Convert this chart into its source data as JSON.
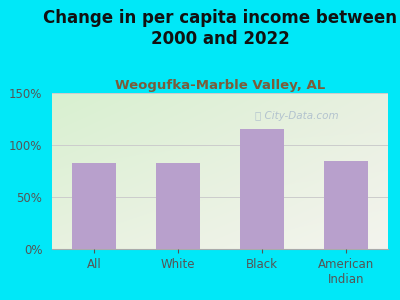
{
  "title": "Change in per capita income between\n2000 and 2022",
  "subtitle": "Weogufka-Marble Valley, AL",
  "categories": [
    "All",
    "White",
    "Black",
    "American\nIndian"
  ],
  "values": [
    83,
    83,
    115,
    85
  ],
  "bar_color": "#b8a0cc",
  "title_fontsize": 12,
  "subtitle_fontsize": 9.5,
  "subtitle_color": "#7a5c3a",
  "title_color": "#111111",
  "background_outer": "#00e8f8",
  "ylim": [
    0,
    150
  ],
  "yticks": [
    0,
    50,
    100,
    150
  ],
  "ytick_labels": [
    "0%",
    "50%",
    "100%",
    "150%"
  ],
  "watermark": "City-Data.com",
  "watermark_color": "#aabbcc",
  "tick_color": "#555555"
}
